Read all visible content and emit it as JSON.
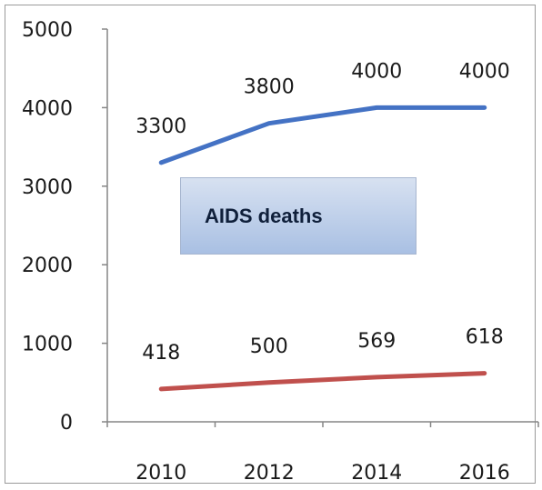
{
  "chart_data": {
    "type": "line",
    "x": [
      "2010",
      "2012",
      "2014",
      "2016"
    ],
    "series": [
      {
        "values": [
          3300,
          3800,
          4000,
          4000
        ],
        "color": "#4472c4"
      },
      {
        "values": [
          418,
          500,
          569,
          618
        ],
        "color": "#c0504d"
      }
    ],
    "annotation": "AIDS deaths",
    "yticks": [
      "0",
      "1000",
      "2000",
      "3000",
      "4000",
      "5000"
    ],
    "ylim": [
      0,
      5000
    ],
    "grid": false,
    "legend": "none"
  }
}
